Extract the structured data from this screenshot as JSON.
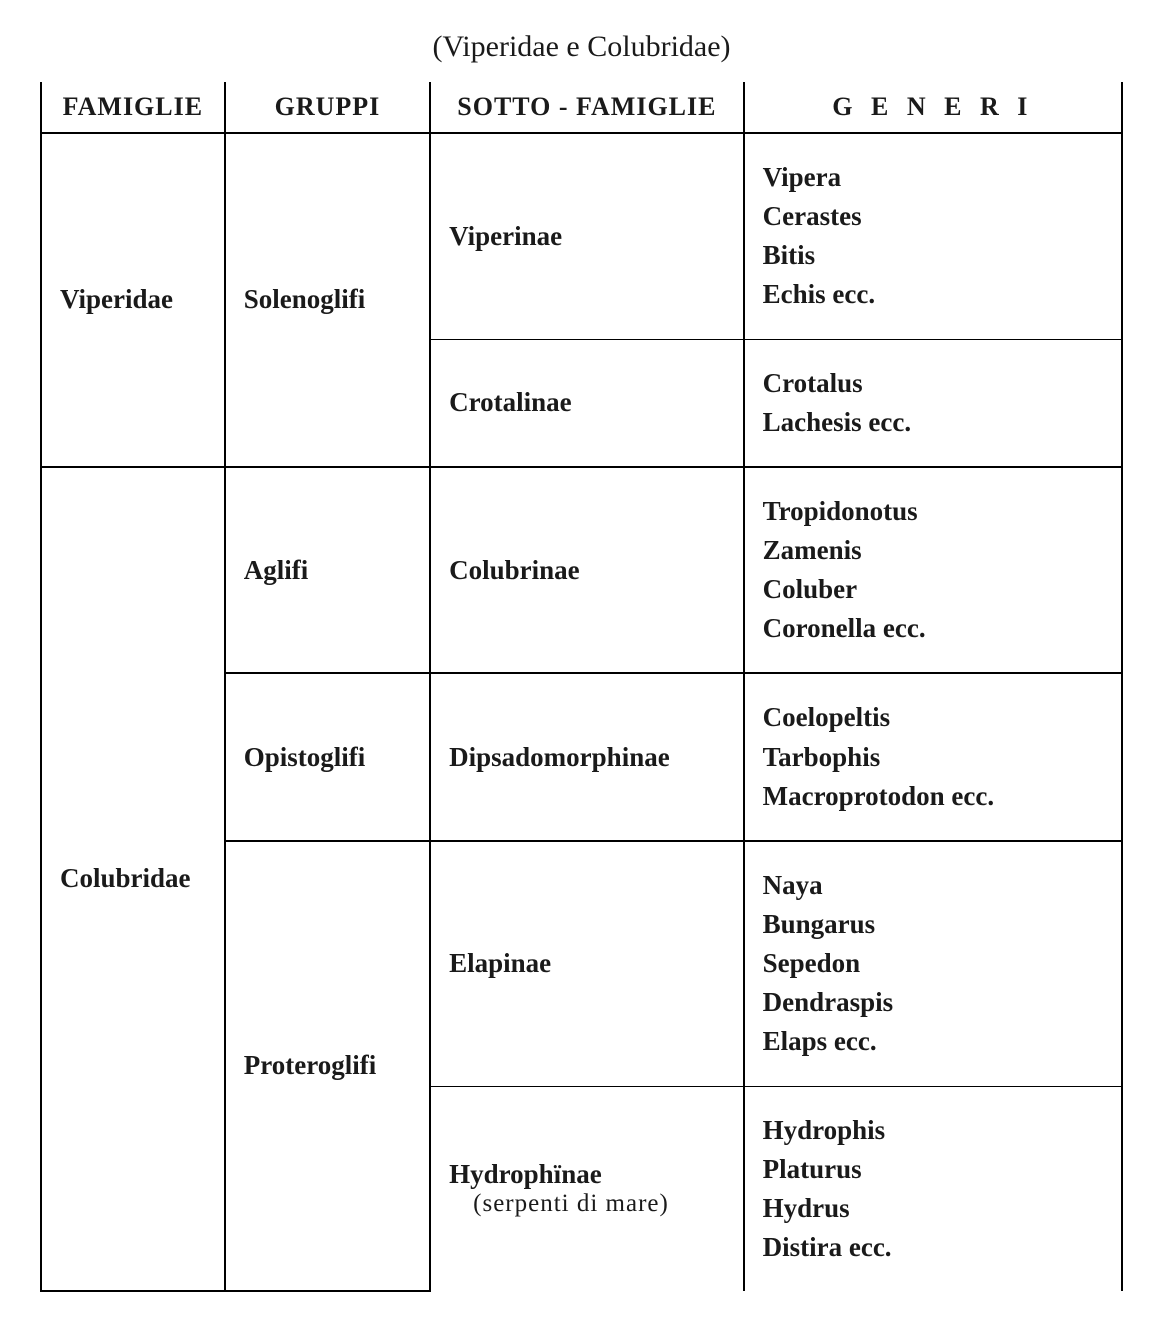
{
  "title": "(Viperidae e Colubridae)",
  "headers": {
    "famiglie": "FAMIGLIE",
    "gruppi": "GRUPPI",
    "sotto_famiglie": "SOTTO - FAMIGLIE",
    "generi": "G E N E R I"
  },
  "rows": [
    {
      "famiglia": "Viperidae",
      "gruppi": [
        {
          "gruppo": "Solenoglifi",
          "sotto": [
            {
              "nome": "Viperinae",
              "note": "",
              "generi": [
                "Vipera",
                "Cerastes",
                "Bitis",
                "Echis ecc."
              ]
            },
            {
              "nome": "Crotalinae",
              "note": "",
              "generi": [
                "Crotalus",
                "Lachesis ecc."
              ]
            }
          ]
        }
      ]
    },
    {
      "famiglia": "Colubridae",
      "gruppi": [
        {
          "gruppo": "Aglifi",
          "sotto": [
            {
              "nome": "Colubrinae",
              "note": "",
              "generi": [
                "Tropidonotus",
                "Zamenis",
                "Coluber",
                "Coronella ecc."
              ]
            }
          ]
        },
        {
          "gruppo": "Opistoglifi",
          "sotto": [
            {
              "nome": "Dipsadomorphinae",
              "note": "",
              "generi": [
                "Coelopeltis",
                "Tarbophis",
                "Macroprotodon ecc."
              ]
            }
          ]
        },
        {
          "gruppo": "Proteroglifi",
          "sotto": [
            {
              "nome": "Elapinae",
              "note": "",
              "generi": [
                "Naya",
                "Bungarus",
                "Sepedon",
                "Dendraspis",
                "Elaps ecc."
              ]
            },
            {
              "nome": "Hydrophïnae",
              "note": "(serpenti di mare)",
              "generi": [
                "Hydrophis",
                "Platurus",
                "Hydrus",
                "Distira ecc."
              ]
            }
          ]
        }
      ]
    }
  ],
  "style": {
    "background_color": "#ffffff",
    "text_color": "#1a1a1a",
    "border_color": "#000000",
    "title_fontsize": 30,
    "header_fontsize": 26,
    "cell_fontsize": 27,
    "font_family": "Times New Roman"
  }
}
